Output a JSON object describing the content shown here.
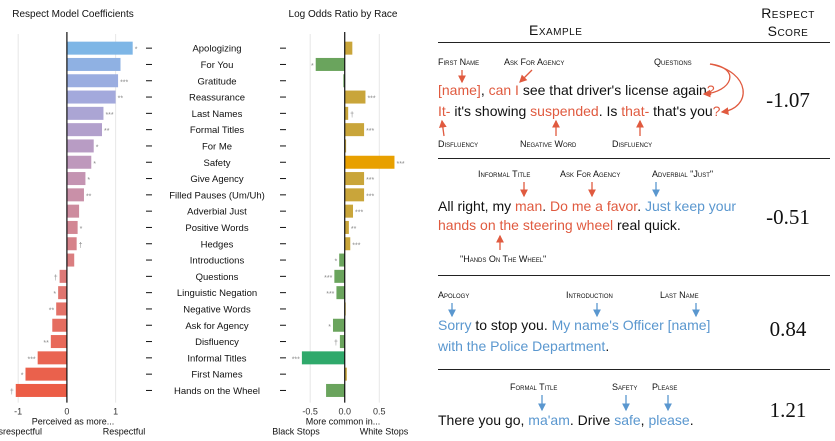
{
  "chart_data": [
    {
      "type": "bar",
      "orientation": "horizontal",
      "title": "Respect Model Coefficients",
      "xlabel": "Perceived as more...",
      "xlabel_left": "Disrespectful",
      "xlabel_right": "Respectful",
      "xlim": [
        -1.25,
        1.5
      ],
      "xticks": [
        "-1",
        "0",
        "1"
      ],
      "xtick_values": [
        -1,
        0,
        1
      ],
      "categories": [
        "Apologizing",
        "For You",
        "Gratitude",
        "Reassurance",
        "Last Names",
        "Formal Titles",
        "For Me",
        "Safety",
        "Give Agency",
        "Filled Pauses (Um/Uh)",
        "Adverbial Just",
        "Positive Words",
        "Hedges",
        "Introductions",
        "Questions",
        "Linguistic Negation",
        "Negative Words",
        "Ask for Agency",
        "Disfluency",
        "Informal Titles",
        "First Names",
        "Hands on the Wheel"
      ],
      "values": [
        1.35,
        1.1,
        1.05,
        1.0,
        0.75,
        0.72,
        0.55,
        0.5,
        0.38,
        0.35,
        0.25,
        0.22,
        0.2,
        0.15,
        -0.15,
        -0.18,
        -0.22,
        -0.3,
        -0.33,
        -0.6,
        -0.85,
        -1.05
      ],
      "significance": [
        "*",
        "",
        "***",
        "**",
        "***",
        "**",
        "*",
        "*",
        "*",
        "**",
        "",
        "*",
        "†",
        "",
        "†",
        "*",
        "**",
        "",
        "**",
        "***",
        "*",
        "†"
      ],
      "colors": [
        "#7eb6e6",
        "#8fb1e3",
        "#9aade0",
        "#a3a9dc",
        "#aba5d4",
        "#b2a0cc",
        "#b89cc4",
        "#be98bc",
        "#c494b2",
        "#c990a8",
        "#cd8b9e",
        "#d28794",
        "#d6828a",
        "#da7e80",
        "#dd7977",
        "#e0756f",
        "#e37167",
        "#e56d60",
        "#e86959",
        "#e96552",
        "#ea614c",
        "#ec5d46"
      ]
    },
    {
      "type": "bar",
      "orientation": "horizontal",
      "title": "Log Odds Ratio by Race",
      "xlabel": "More common in...",
      "xlabel_left": "Black Stops",
      "xlabel_right": "White Stops",
      "xlim": [
        -0.85,
        0.8
      ],
      "xticks": [
        "-0.5",
        "0.0",
        "0.5"
      ],
      "xtick_values": [
        -0.5,
        0,
        0.5
      ],
      "categories": [
        "Apologizing",
        "For You",
        "Gratitude",
        "Reassurance",
        "Last Names",
        "Formal Titles",
        "For Me",
        "Safety",
        "Give Agency",
        "Filled Pauses (Um/Uh)",
        "Adverbial Just",
        "Positive Words",
        "Hedges",
        "Introductions",
        "Questions",
        "Linguistic Negation",
        "Negative Words",
        "Ask for Agency",
        "Disfluency",
        "Informal Titles",
        "First Names",
        "Hands on the Wheel"
      ],
      "values": [
        0.11,
        -0.42,
        -0.02,
        0.3,
        0.05,
        0.28,
        0.02,
        0.72,
        0.28,
        0.28,
        0.12,
        0.06,
        0.08,
        -0.08,
        -0.15,
        -0.12,
        0.0,
        -0.17,
        -0.07,
        -0.62,
        0.03,
        -0.27
      ],
      "significance": [
        "",
        "*",
        "",
        "***",
        "†",
        "***",
        "",
        "***",
        "***",
        "***",
        "***",
        "**",
        "***",
        "*",
        "***",
        "***",
        "",
        "*",
        "†",
        "***",
        "",
        ""
      ],
      "pos_color": "#c9a53a",
      "neg_color": "#6aa45d",
      "highlight": {
        "Safety": "#e8a000",
        "Informal Titles": "#2fa96b"
      }
    }
  ],
  "examples": {
    "header_example": "Example",
    "header_score": "Respect Score",
    "items": [
      {
        "score": "-1.07",
        "labels": {
          "first_name": "First Name",
          "ask_for_agency": "Ask For Agency",
          "questions": "Questions",
          "disfluency_1": "Disfluency",
          "negative_word": "Negative Word",
          "disfluency_2": "Disfluency"
        },
        "line1": {
          "a": "[name]",
          "b": ", ",
          "c": "can I",
          "d": " see that driver's license again",
          "e": "?"
        },
        "line2": {
          "a": "It-",
          "b": " it's showing ",
          "c": "suspended",
          "d": ". Is ",
          "e": "that-",
          "f": " that's you",
          "g": "?"
        }
      },
      {
        "score": "-0.51",
        "labels": {
          "informal_title": "Informal Title",
          "ask_for_agency": "Ask For Agency",
          "adverbial_just": "Adverbial \"Just\"",
          "hands_on_wheel": "\"Hands On The Wheel\""
        },
        "line1": {
          "a": "All right, my ",
          "b": "man",
          "c": ". ",
          "d": "Do me a favor",
          "e": ".  ",
          "f": "Just",
          "g": " keep your"
        },
        "line2": {
          "a": "hands on the steering wheel",
          "b": " real quick."
        }
      },
      {
        "score": "0.84",
        "labels": {
          "apology": "Apology",
          "introduction": "Introduction",
          "last_name": "Last Name"
        },
        "line1": {
          "a": "Sorry",
          "b": " to stop you. ",
          "c": "My name's Officer [name]"
        },
        "line2": {
          "a": "with the Police Department",
          "b": "."
        }
      },
      {
        "score": "1.21",
        "labels": {
          "formal_title": "Formal Title",
          "safety": "Safety",
          "please": "Please"
        },
        "line1": {
          "a": "There you go, ",
          "b": "ma'am",
          "c": ". Drive ",
          "d": "safe",
          "e": ", ",
          "f": "please",
          "g": "."
        }
      }
    ]
  }
}
